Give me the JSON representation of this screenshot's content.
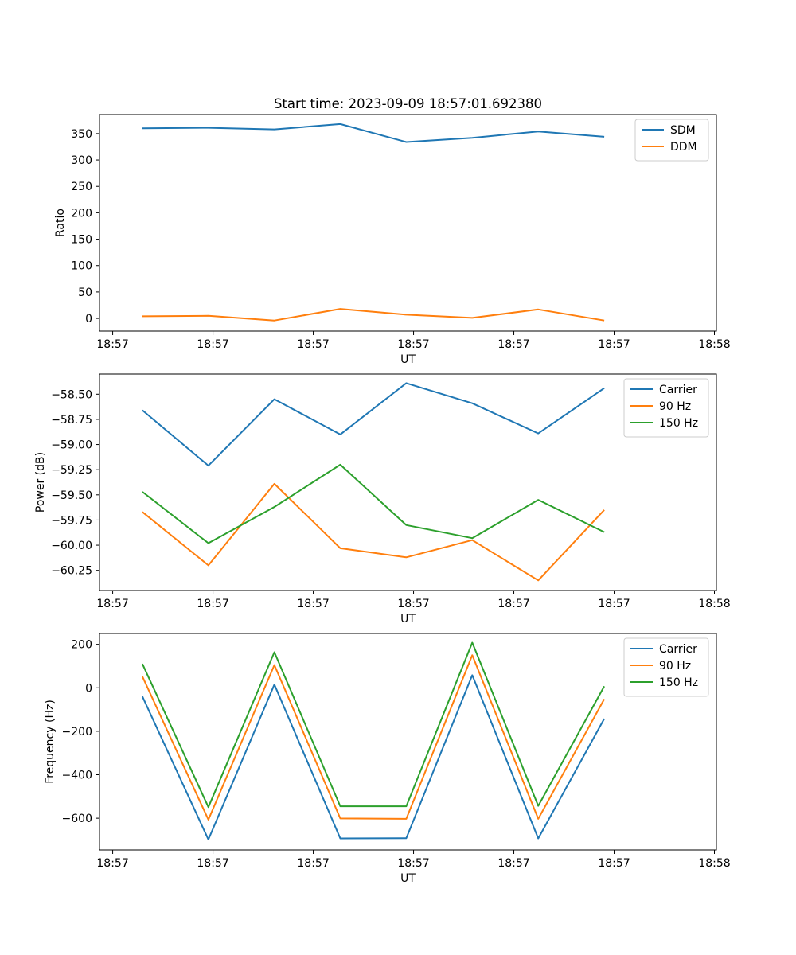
{
  "figure_title": "Start time: 2023-09-09 18:57:01.692380",
  "colors": {
    "blue": "#1f77b4",
    "orange": "#ff7f0e",
    "green": "#2ca02c"
  },
  "chart_data": [
    {
      "type": "line",
      "title": "Start time: 2023-09-09 18:57:01.692380",
      "xlabel": "UT",
      "ylabel": "Ratio",
      "xlim": [
        -0.65,
        8.7
      ],
      "x_ticks": [
        -0.45,
        1.07,
        2.59,
        4.11,
        5.63,
        7.15,
        8.67
      ],
      "x_tick_labels": [
        "18:57",
        "18:57",
        "18:57",
        "18:57",
        "18:57",
        "18:57",
        "18:58"
      ],
      "ylim": [
        -24,
        386
      ],
      "y_ticks": [
        0,
        50,
        100,
        150,
        200,
        250,
        300,
        350
      ],
      "y_tick_labels": [
        "0",
        "50",
        "100",
        "150",
        "200",
        "250",
        "300",
        "350"
      ],
      "legend_position": "upper right",
      "x": [
        0,
        1,
        2,
        3,
        4,
        5,
        6,
        7
      ],
      "series": [
        {
          "name": "SDM",
          "color": "#1f77b4",
          "values": [
            360,
            361,
            358,
            368,
            334,
            342,
            354,
            344
          ]
        },
        {
          "name": "DDM",
          "color": "#ff7f0e",
          "values": [
            4,
            5,
            -4,
            18,
            7,
            1,
            17,
            -4
          ]
        }
      ]
    },
    {
      "type": "line",
      "title": "",
      "xlabel": "UT",
      "ylabel": "Power (dB)",
      "xlim": [
        -0.65,
        8.7
      ],
      "x_ticks": [
        -0.45,
        1.07,
        2.59,
        4.11,
        5.63,
        7.15,
        8.67
      ],
      "x_tick_labels": [
        "18:57",
        "18:57",
        "18:57",
        "18:57",
        "18:57",
        "18:57",
        "18:58"
      ],
      "ylim": [
        -60.45,
        -58.3
      ],
      "y_ticks": [
        -60.25,
        -60.0,
        -59.75,
        -59.5,
        -59.25,
        -59.0,
        -58.75,
        -58.5
      ],
      "y_tick_labels": [
        "−60.25",
        "−60.00",
        "−59.75",
        "−59.50",
        "−59.25",
        "−59.00",
        "−58.75",
        "−58.50"
      ],
      "legend_position": "upper right",
      "x": [
        0,
        1,
        2,
        3,
        4,
        5,
        6,
        7
      ],
      "series": [
        {
          "name": "Carrier",
          "color": "#1f77b4",
          "values": [
            -58.66,
            -59.21,
            -58.55,
            -58.9,
            -58.39,
            -58.59,
            -58.89,
            -58.44
          ]
        },
        {
          "name": "90 Hz",
          "color": "#ff7f0e",
          "values": [
            -59.67,
            -60.2,
            -59.39,
            -60.03,
            -60.12,
            -59.95,
            -60.35,
            -59.65
          ]
        },
        {
          "name": "150 Hz",
          "color": "#2ca02c",
          "values": [
            -59.47,
            -59.98,
            -59.62,
            -59.2,
            -59.8,
            -59.93,
            -59.55,
            -59.87
          ]
        }
      ]
    },
    {
      "type": "line",
      "title": "",
      "xlabel": "UT",
      "ylabel": "Frequency (Hz)",
      "xlim": [
        -0.65,
        8.7
      ],
      "x_ticks": [
        -0.45,
        1.07,
        2.59,
        4.11,
        5.63,
        7.15,
        8.67
      ],
      "x_tick_labels": [
        "18:57",
        "18:57",
        "18:57",
        "18:57",
        "18:57",
        "18:57",
        "18:58"
      ],
      "ylim": [
        -746,
        250
      ],
      "y_ticks": [
        -600,
        -400,
        -200,
        0,
        200
      ],
      "y_tick_labels": [
        "−600",
        "−400",
        "−200",
        "0",
        "200"
      ],
      "legend_position": "upper right",
      "x": [
        0,
        1,
        2,
        3,
        4,
        5,
        6,
        7
      ],
      "series": [
        {
          "name": "Carrier",
          "color": "#1f77b4",
          "values": [
            -40,
            -698,
            15,
            -693,
            -692,
            58,
            -693,
            -142
          ]
        },
        {
          "name": "90 Hz",
          "color": "#ff7f0e",
          "values": [
            52,
            -607,
            105,
            -601,
            -603,
            150,
            -603,
            -52
          ]
        },
        {
          "name": "150 Hz",
          "color": "#2ca02c",
          "values": [
            110,
            -549,
            164,
            -545,
            -545,
            208,
            -543,
            7
          ]
        }
      ]
    }
  ]
}
